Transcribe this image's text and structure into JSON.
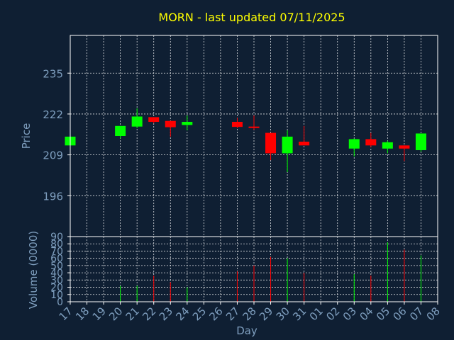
{
  "chart_data": {
    "type": "candlestick",
    "title": "MORN - last updated 07/11/2025",
    "xlabel": "Day",
    "price_panel": {
      "ylabel": "Price",
      "ylim": [
        183,
        247
      ],
      "yticks": [
        196,
        209,
        222,
        235
      ]
    },
    "volume_panel": {
      "ylabel": "Volume (0000)",
      "ylim": [
        0,
        90
      ],
      "yticks": [
        0,
        10,
        20,
        30,
        40,
        50,
        60,
        70,
        80,
        90
      ]
    },
    "x_labels": [
      "17",
      "18",
      "19",
      "20",
      "21",
      "22",
      "23",
      "24",
      "25",
      "26",
      "27",
      "28",
      "29",
      "30",
      "31",
      "01",
      "02",
      "03",
      "04",
      "05",
      "06",
      "07",
      "08"
    ],
    "candles": [
      {
        "i": 0,
        "open": 212.0,
        "close": 214.8,
        "high": 214.8,
        "low": 212.0,
        "volume": 0
      },
      {
        "i": 3,
        "open": 215.0,
        "close": 218.2,
        "high": 218.2,
        "low": 214.2,
        "volume": 22
      },
      {
        "i": 4,
        "open": 218.0,
        "close": 221.2,
        "high": 223.8,
        "low": 217.5,
        "volume": 22
      },
      {
        "i": 5,
        "open": 221.0,
        "close": 219.5,
        "high": 221.0,
        "low": 219.0,
        "volume": 36
      },
      {
        "i": 6,
        "open": 219.8,
        "close": 217.8,
        "high": 219.8,
        "low": 214.8,
        "volume": 27
      },
      {
        "i": 7,
        "open": 218.5,
        "close": 219.5,
        "high": 221.5,
        "low": 216.8,
        "volume": 20
      },
      {
        "i": 10,
        "open": 219.5,
        "close": 217.9,
        "high": 220.8,
        "low": 217.5,
        "volume": 42
      },
      {
        "i": 11,
        "open": 218.0,
        "close": 217.6,
        "high": 221.5,
        "low": 217.0,
        "volume": 50
      },
      {
        "i": 12,
        "open": 216.0,
        "close": 209.5,
        "high": 216.0,
        "low": 207.3,
        "volume": 62
      },
      {
        "i": 13,
        "open": 209.5,
        "close": 214.8,
        "high": 216.8,
        "low": 203.5,
        "volume": 60
      },
      {
        "i": 14,
        "open": 213.2,
        "close": 212.0,
        "high": 218.2,
        "low": 212.0,
        "volume": 40
      },
      {
        "i": 17,
        "open": 211.0,
        "close": 214.0,
        "high": 214.2,
        "low": 208.5,
        "volume": 38
      },
      {
        "i": 18,
        "open": 214.0,
        "close": 212.0,
        "high": 216.0,
        "low": 211.5,
        "volume": 36
      },
      {
        "i": 19,
        "open": 211.0,
        "close": 213.0,
        "high": 213.5,
        "low": 209.5,
        "volume": 82
      },
      {
        "i": 20,
        "open": 212.0,
        "close": 211.0,
        "high": 212.0,
        "low": 207.0,
        "volume": 72
      },
      {
        "i": 21,
        "open": 210.5,
        "close": 215.8,
        "high": 215.8,
        "low": 210.0,
        "volume": 64
      }
    ],
    "colors": {
      "background": "#0f1f33",
      "up": "#00ff00",
      "down": "#ff0000",
      "title": "#ffff00",
      "axis_text": "#7f9fbf",
      "grid": "#ffffff",
      "frame": "#ffffff"
    }
  }
}
